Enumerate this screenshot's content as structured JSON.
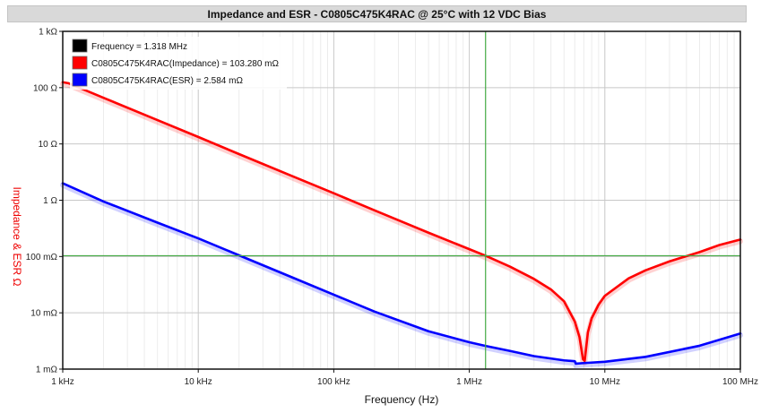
{
  "chart_data": {
    "type": "line",
    "title": "Impedance and ESR - C0805C475K4RAC @ 25°C with 12 VDC Bias",
    "xlabel": "Frequency (Hz)",
    "ylabel": "Impedance & ESR Ω",
    "x_scale": "log",
    "y_scale": "log",
    "xlim_hz": [
      1000,
      100000000
    ],
    "ylim_ohm": [
      0.001,
      1000
    ],
    "x_ticks": [
      {
        "value": 1000,
        "label": "1 kHz"
      },
      {
        "value": 10000,
        "label": "10 kHz"
      },
      {
        "value": 100000,
        "label": "100 kHz"
      },
      {
        "value": 1000000,
        "label": "1 MHz"
      },
      {
        "value": 10000000,
        "label": "10 MHz"
      },
      {
        "value": 100000000,
        "label": "100 MHz"
      }
    ],
    "y_ticks": [
      {
        "value": 0.001,
        "label": "1 mΩ"
      },
      {
        "value": 0.01,
        "label": "10 mΩ"
      },
      {
        "value": 0.1,
        "label": "100 mΩ"
      },
      {
        "value": 1,
        "label": "1 Ω"
      },
      {
        "value": 10,
        "label": "10 Ω"
      },
      {
        "value": 100,
        "label": "100 Ω"
      },
      {
        "value": 1000,
        "label": "1 kΩ"
      }
    ],
    "grid": true,
    "legend_position": "top-left",
    "cursor": {
      "frequency_hz": 1318000,
      "impedance_ohm": 0.10328,
      "color": "#44aa44"
    },
    "legend": [
      {
        "color": "#000000",
        "text": "Frequency = 1.318 MHz"
      },
      {
        "color": "#ff0000",
        "text": "C0805C475K4RAC(Impedance) = 103.280 mΩ"
      },
      {
        "color": "#0000ff",
        "text": "C0805C475K4RAC(ESR) = 2.584 mΩ"
      }
    ],
    "series": [
      {
        "name": "C0805C475K4RAC(Impedance)",
        "color": "#ff0000",
        "x": [
          1000,
          1100,
          2000,
          5000,
          10000,
          20000,
          50000,
          100000,
          200000,
          500000,
          1000000,
          1318000,
          2000000,
          3000000,
          4000000,
          5000000,
          6000000,
          6500000,
          6900000,
          7100000,
          7500000,
          8000000,
          9000000,
          10000000,
          15000000,
          20000000,
          30000000,
          50000000,
          70000000,
          100000000
        ],
        "y": [
          125,
          120,
          66,
          26.5,
          13.3,
          6.6,
          2.65,
          1.33,
          0.66,
          0.265,
          0.135,
          0.10328,
          0.066,
          0.04,
          0.026,
          0.016,
          0.007,
          0.0037,
          0.0015,
          0.0014,
          0.0045,
          0.008,
          0.014,
          0.02,
          0.041,
          0.057,
          0.082,
          0.12,
          0.16,
          0.2
        ]
      },
      {
        "name": "C0805C475K4RAC(ESR)",
        "color": "#0000ff",
        "x": [
          1000,
          2000,
          5000,
          10000,
          20000,
          50000,
          100000,
          200000,
          500000,
          1000000,
          1318000,
          2000000,
          3000000,
          5000000,
          6000000,
          6100000,
          7000000,
          10000000,
          20000000,
          50000000,
          100000000
        ],
        "y": [
          2.0,
          0.95,
          0.4,
          0.21,
          0.105,
          0.042,
          0.021,
          0.0105,
          0.0047,
          0.003,
          0.002584,
          0.0021,
          0.0017,
          0.00143,
          0.00138,
          0.00125,
          0.00128,
          0.00135,
          0.00165,
          0.0026,
          0.0043
        ]
      }
    ]
  }
}
